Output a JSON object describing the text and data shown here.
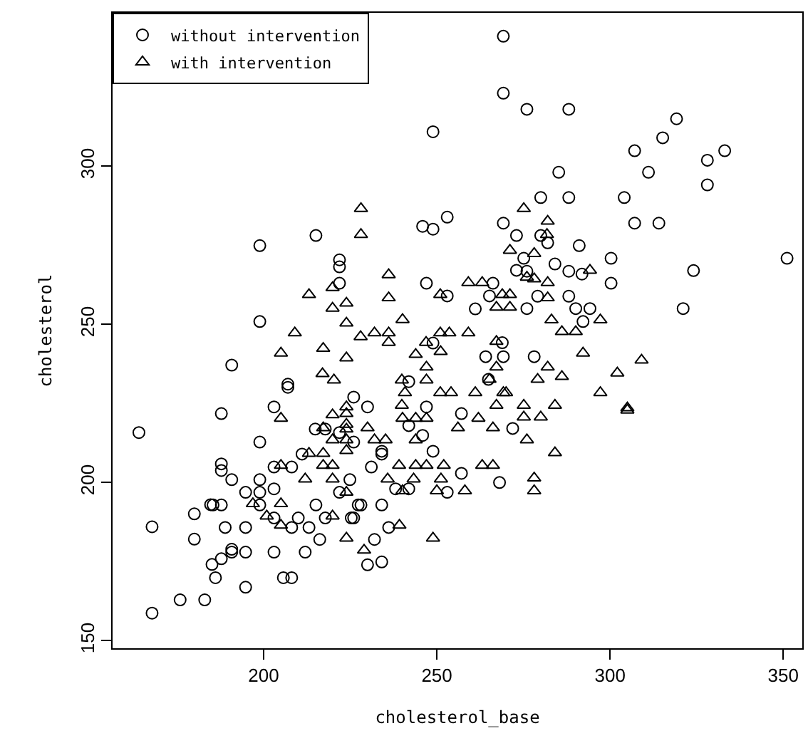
{
  "chart_data": {
    "type": "scatter",
    "xlabel": "cholesterol_base",
    "ylabel": "cholesterol",
    "xlim": [
      156.4,
      355.5
    ],
    "ylim": [
      147.6,
      348.5
    ],
    "xticks": [
      200,
      250,
      300,
      350
    ],
    "yticks": [
      150,
      200,
      250,
      300
    ],
    "grid": false,
    "legend": "top left",
    "series": [
      {
        "name": "without intervention",
        "color": "#000000",
        "marker": "circle",
        "x": [
          269.2,
          269.2,
          248.9,
          253.0,
          245.9,
          248.9,
          269.2,
          198.9,
          215.1,
          221.9,
          221.9,
          221.9,
          247.0,
          253.0,
          261.1,
          265.2,
          266.2,
          198.9,
          248.9,
          276.0,
          288.1,
          319.2,
          315.2,
          307.1,
          333.1,
          328.1,
          285.2,
          311.1,
          328.1,
          280.0,
          288.1,
          304.1,
          307.1,
          314.1,
          273.0,
          280.0,
          282.0,
          291.1,
          275.1,
          284.1,
          300.3,
          351.1,
          273.0,
          276.0,
          288.1,
          291.9,
          324.1,
          300.3,
          279.1,
          288.1,
          276.0,
          290.1,
          294.2,
          292.2,
          321.1,
          268.9,
          190.8,
          207.0,
          207.0,
          187.8,
          203.0,
          226.0,
          230.0,
          198.9,
          214.9,
          217.8,
          221.9,
          226.0,
          211.1,
          234.1,
          234.1,
          245.9,
          241.9,
          247.0,
          257.1,
          248.9,
          264.1,
          269.2,
          241.9,
          264.9,
          187.8,
          187.8,
          203.0,
          208.1,
          231.1,
          190.8,
          198.9,
          194.8,
          198.9,
          203.0,
          224.9,
          221.9,
          257.1,
          268.1,
          238.1,
          241.9,
          253.0,
          185.4,
          187.8,
          198.9,
          203.0,
          215.1,
          227.3,
          228.1,
          234.1,
          217.8,
          225.3,
          226.0,
          210.0,
          188.9,
          194.8,
          208.1,
          213.1,
          236.1,
          216.2,
          232.0,
          190.8,
          190.8,
          194.8,
          203.0,
          212.0,
          187.8,
          186.1,
          205.7,
          208.1,
          194.8,
          230.0,
          234.1,
          278.1,
          271.9,
          164.0,
          167.8,
          180.0,
          180.0,
          184.7,
          185.1,
          167.8,
          175.9,
          183.0
        ],
        "values": [
          341.1,
          323.1,
          310.9,
          283.9,
          281.0,
          280.1,
          282.0,
          274.9,
          278.1,
          270.4,
          268.2,
          263.0,
          263.0,
          259.0,
          254.9,
          259.0,
          263.0,
          250.9,
          244.1,
          318.0,
          318.0,
          315.0,
          309.0,
          304.9,
          304.9,
          301.9,
          298.1,
          298.1,
          294.1,
          290.1,
          290.1,
          290.1,
          282.0,
          282.0,
          278.1,
          278.1,
          275.8,
          274.9,
          270.9,
          269.1,
          270.9,
          270.9,
          267.1,
          266.8,
          266.8,
          265.9,
          267.0,
          263.0,
          258.9,
          258.9,
          255.0,
          255.0,
          255.0,
          250.9,
          255.0,
          244.2,
          237.1,
          231.1,
          230.1,
          221.8,
          223.9,
          227.0,
          223.9,
          212.8,
          216.9,
          216.9,
          215.8,
          212.8,
          209.0,
          209.9,
          209.0,
          214.9,
          218.0,
          223.9,
          221.8,
          209.9,
          239.8,
          239.8,
          231.9,
          232.6,
          205.9,
          203.8,
          204.9,
          204.9,
          204.9,
          200.9,
          200.9,
          196.9,
          196.9,
          198.0,
          200.9,
          196.9,
          202.9,
          200.0,
          198.0,
          198.0,
          196.9,
          192.9,
          192.9,
          192.9,
          188.8,
          192.9,
          192.9,
          192.9,
          192.9,
          188.8,
          188.8,
          188.8,
          188.8,
          185.8,
          185.8,
          185.8,
          185.8,
          185.8,
          182.0,
          182.0,
          178.9,
          178.0,
          178.0,
          178.0,
          178.0,
          175.9,
          169.9,
          169.9,
          169.9,
          166.9,
          174.0,
          174.9,
          239.8,
          217.1,
          215.8,
          186.0,
          190.1,
          182.1,
          193.0,
          174.1,
          158.7,
          162.9,
          162.9
        ]
      },
      {
        "name": "with intervention",
        "color": "#000000",
        "marker": "triangle",
        "x": [
          228.1,
          228.1,
          236.1,
          213.1,
          219.9,
          236.1,
          219.9,
          223.9,
          223.9,
          240.1,
          209.0,
          228.0,
          232.0,
          236.1,
          236.1,
          251.0,
          253.6,
          259.1,
          259.1,
          263.1,
          251.0,
          267.2,
          246.9,
          267.2,
          217.2,
          205.0,
          275.1,
          282.0,
          281.8,
          271.1,
          278.1,
          276.0,
          278.1,
          282.0,
          294.2,
          268.9,
          271.1,
          271.1,
          282.0,
          283.1,
          286.1,
          290.1,
          297.2,
          292.2,
          309.1,
          282.0,
          279.1,
          286.1,
          302.1,
          270.0,
          297.2,
          275.1,
          284.1,
          305.0,
          305.0,
          275.1,
          280.0,
          276.0,
          284.1,
          278.1,
          278.1,
          223.9,
          243.9,
          251.1,
          217.0,
          220.3,
          239.9,
          247.0,
          247.0,
          267.2,
          265.2,
          240.8,
          251.0,
          254.1,
          261.1,
          269.2,
          223.9,
          223.9,
          219.9,
          205.0,
          239.9,
          240.1,
          243.9,
          247.0,
          262.0,
          267.2,
          223.9,
          223.9,
          230.0,
          217.2,
          219.9,
          223.9,
          232.0,
          235.2,
          243.9,
          256.1,
          266.2,
          223.9,
          213.1,
          217.2,
          205.0,
          217.2,
          219.9,
          239.1,
          243.9,
          247.0,
          252.0,
          263.1,
          266.2,
          212.0,
          219.9,
          235.8,
          243.3,
          251.2,
          223.9,
          240.1,
          250.0,
          258.1,
          196.9,
          205.0,
          200.9,
          205.0,
          219.9,
          239.2,
          223.9,
          248.9,
          229.0
        ],
        "values": [
          286.6,
          278.4,
          265.7,
          259.4,
          261.6,
          258.4,
          255.1,
          256.7,
          250.4,
          251.5,
          247.3,
          246.1,
          247.3,
          247.3,
          244.3,
          247.3,
          247.3,
          247.3,
          263.2,
          263.2,
          259.4,
          255.4,
          244.3,
          244.6,
          242.4,
          240.9,
          286.6,
          282.6,
          278.4,
          273.4,
          272.4,
          264.9,
          264.4,
          263.2,
          267.1,
          259.4,
          259.4,
          255.4,
          258.4,
          251.4,
          247.7,
          247.7,
          251.4,
          240.9,
          238.7,
          236.5,
          232.6,
          233.5,
          234.6,
          228.4,
          228.4,
          224.4,
          224.4,
          223.6,
          222.9,
          220.7,
          220.7,
          213.5,
          209.4,
          201.4,
          197.4,
          239.4,
          240.5,
          241.4,
          234.4,
          232.4,
          232.4,
          236.5,
          232.4,
          236.5,
          232.6,
          228.4,
          228.4,
          228.4,
          228.4,
          228.4,
          223.9,
          221.8,
          221.4,
          220.3,
          224.4,
          220.3,
          220.3,
          220.3,
          220.3,
          224.4,
          218.4,
          216.9,
          217.3,
          217.3,
          213.5,
          213.5,
          213.5,
          213.5,
          213.5,
          217.3,
          217.3,
          210.1,
          209.2,
          209.2,
          205.4,
          205.4,
          205.4,
          205.4,
          205.4,
          205.4,
          205.4,
          205.4,
          205.4,
          201.1,
          201.1,
          201.1,
          201.1,
          201.1,
          196.9,
          197.4,
          197.4,
          197.4,
          193.3,
          193.3,
          189.4,
          186.5,
          189.4,
          186.5,
          182.4,
          182.4,
          178.6
        ]
      }
    ]
  }
}
